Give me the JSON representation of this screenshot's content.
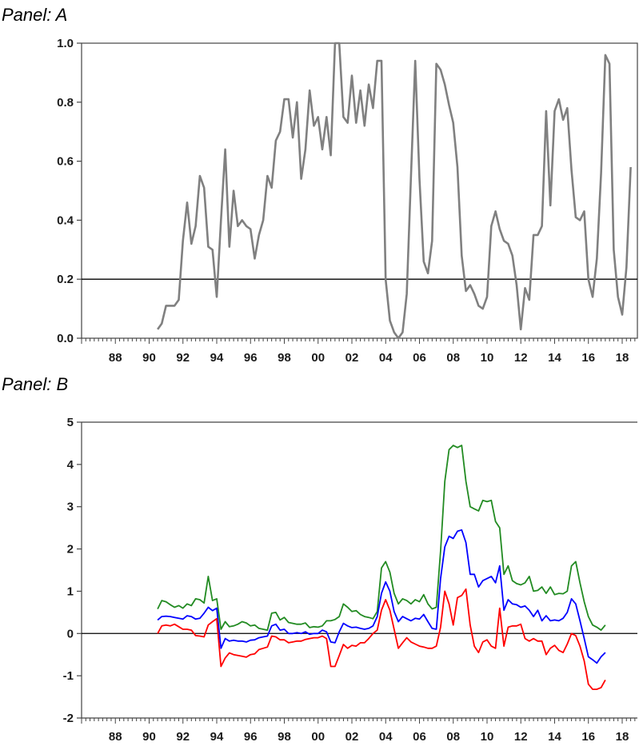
{
  "panels": {
    "a_label": "Panel: A",
    "b_label": "Panel: B"
  },
  "chart_data": [
    {
      "type": "line",
      "panel": "A",
      "x_start": 1986.25,
      "x_step": 0.25,
      "xlim": [
        1986.0,
        2018.9
      ],
      "ylim": [
        0.0,
        1.0
      ],
      "xticks": [
        "88",
        "90",
        "92",
        "94",
        "96",
        "98",
        "00",
        "02",
        "04",
        "06",
        "08",
        "10",
        "12",
        "14",
        "16",
        "18"
      ],
      "yticks": [
        "0.0",
        "0.2",
        "0.4",
        "0.6",
        "0.8",
        "1.0"
      ],
      "reference_line": 0.2,
      "series": [
        {
          "color": "#808080",
          "start": 1990.5,
          "values": [
            0.03,
            0.05,
            0.11,
            0.11,
            0.11,
            0.13,
            0.33,
            0.46,
            0.32,
            0.38,
            0.55,
            0.51,
            0.31,
            0.3,
            0.14,
            0.4,
            0.64,
            0.31,
            0.5,
            0.38,
            0.4,
            0.38,
            0.37,
            0.27,
            0.35,
            0.4,
            0.55,
            0.51,
            0.67,
            0.7,
            0.81,
            0.81,
            0.68,
            0.8,
            0.54,
            0.64,
            0.84,
            0.72,
            0.75,
            0.64,
            0.75,
            0.62,
            1.0,
            1.0,
            0.75,
            0.73,
            0.89,
            0.73,
            0.84,
            0.72,
            0.86,
            0.78,
            0.94,
            0.94,
            0.2,
            0.06,
            0.02,
            0.0,
            0.02,
            0.15,
            0.55,
            0.94,
            0.54,
            0.26,
            0.22,
            0.33,
            0.93,
            0.91,
            0.86,
            0.79,
            0.73,
            0.58,
            0.28,
            0.16,
            0.18,
            0.15,
            0.11,
            0.1,
            0.14,
            0.38,
            0.43,
            0.37,
            0.33,
            0.32,
            0.28,
            0.18,
            0.03,
            0.17,
            0.13,
            0.35,
            0.35,
            0.38,
            0.77,
            0.45,
            0.77,
            0.81,
            0.74,
            0.78,
            0.57,
            0.41,
            0.4,
            0.43,
            0.2,
            0.14,
            0.27,
            0.56,
            0.96,
            0.93,
            0.3,
            0.14,
            0.08,
            0.24,
            0.58
          ]
        }
      ]
    },
    {
      "type": "line",
      "panel": "B",
      "xlim": [
        1986.0,
        2018.9
      ],
      "ylim": [
        -2,
        5
      ],
      "xticks": [
        "88",
        "90",
        "92",
        "94",
        "96",
        "98",
        "00",
        "02",
        "04",
        "06",
        "08",
        "10",
        "12",
        "14",
        "16",
        "18"
      ],
      "yticks": [
        "-2",
        "-1",
        "0",
        "1",
        "2",
        "3",
        "4",
        "5"
      ],
      "reference_line": 0,
      "series": [
        {
          "color": "#228b22",
          "start": 1990.5,
          "values": [
            0.58,
            0.78,
            0.75,
            0.68,
            0.62,
            0.66,
            0.6,
            0.7,
            0.66,
            0.82,
            0.8,
            0.72,
            1.35,
            0.78,
            0.82,
            0.1,
            0.28,
            0.16,
            0.18,
            0.22,
            0.28,
            0.25,
            0.18,
            0.2,
            0.12,
            0.1,
            0.08,
            0.48,
            0.5,
            0.32,
            0.38,
            0.26,
            0.24,
            0.22,
            0.22,
            0.25,
            0.14,
            0.16,
            0.15,
            0.18,
            0.3,
            0.3,
            0.33,
            0.4,
            0.7,
            0.62,
            0.52,
            0.54,
            0.45,
            0.4,
            0.38,
            0.35,
            0.52,
            1.55,
            1.7,
            1.45,
            0.95,
            0.7,
            0.82,
            0.78,
            0.7,
            0.8,
            0.75,
            0.92,
            0.7,
            0.58,
            0.62,
            1.95,
            3.6,
            4.35,
            4.45,
            4.4,
            4.45,
            3.6,
            3.0,
            2.95,
            2.9,
            3.15,
            3.12,
            3.15,
            2.65,
            2.5,
            1.4,
            1.6,
            1.25,
            1.18,
            1.15,
            1.2,
            1.35,
            1.0,
            1.02,
            1.1,
            0.95,
            1.1,
            0.92,
            0.95,
            0.94,
            1.0,
            1.6,
            1.7,
            1.2,
            0.75,
            0.4,
            0.2,
            0.15,
            0.08,
            0.2
          ]
        },
        {
          "color": "#0000ff",
          "start": 1990.5,
          "values": [
            0.32,
            0.4,
            0.41,
            0.4,
            0.38,
            0.36,
            0.34,
            0.42,
            0.4,
            0.34,
            0.36,
            0.48,
            0.62,
            0.54,
            0.6,
            -0.35,
            -0.12,
            -0.18,
            -0.16,
            -0.18,
            -0.18,
            -0.2,
            -0.16,
            -0.15,
            -0.1,
            -0.08,
            -0.06,
            0.18,
            0.22,
            0.08,
            0.1,
            0.0,
            0.0,
            0.02,
            0.0,
            0.04,
            -0.02,
            0.0,
            0.0,
            0.08,
            0.04,
            -0.2,
            -0.22,
            0.04,
            0.24,
            0.18,
            0.14,
            0.15,
            0.12,
            0.1,
            0.12,
            0.18,
            0.4,
            0.95,
            1.22,
            1.0,
            0.52,
            0.28,
            0.4,
            0.35,
            0.3,
            0.36,
            0.34,
            0.45,
            0.28,
            0.12,
            0.1,
            1.3,
            2.05,
            2.3,
            2.25,
            2.42,
            2.45,
            2.15,
            1.4,
            1.4,
            1.1,
            1.25,
            1.3,
            1.35,
            1.2,
            1.6,
            0.55,
            0.8,
            0.7,
            0.68,
            0.62,
            0.65,
            0.55,
            0.4,
            0.55,
            0.3,
            0.42,
            0.3,
            0.32,
            0.3,
            0.36,
            0.5,
            0.82,
            0.7,
            0.3,
            -0.12,
            -0.55,
            -0.62,
            -0.7,
            -0.55,
            -0.45
          ]
        },
        {
          "color": "#ff0000",
          "start": 1990.5,
          "values": [
            0.0,
            0.18,
            0.2,
            0.18,
            0.22,
            0.16,
            0.1,
            0.1,
            0.08,
            -0.05,
            -0.06,
            -0.08,
            0.2,
            0.28,
            0.35,
            -0.78,
            -0.58,
            -0.46,
            -0.5,
            -0.52,
            -0.54,
            -0.56,
            -0.5,
            -0.48,
            -0.38,
            -0.35,
            -0.32,
            -0.06,
            -0.08,
            -0.15,
            -0.15,
            -0.22,
            -0.2,
            -0.18,
            -0.18,
            -0.14,
            -0.12,
            -0.1,
            -0.1,
            -0.06,
            -0.12,
            -0.78,
            -0.78,
            -0.52,
            -0.26,
            -0.35,
            -0.28,
            -0.3,
            -0.22,
            -0.22,
            -0.12,
            0.0,
            0.08,
            0.55,
            0.8,
            0.55,
            0.1,
            -0.35,
            -0.22,
            -0.1,
            -0.2,
            -0.25,
            -0.3,
            -0.32,
            -0.35,
            -0.35,
            -0.3,
            0.15,
            1.0,
            0.7,
            0.2,
            0.85,
            0.9,
            1.05,
            0.2,
            -0.3,
            -0.45,
            -0.2,
            -0.15,
            -0.3,
            -0.35,
            0.6,
            -0.3,
            0.15,
            0.18,
            0.18,
            0.22,
            -0.12,
            -0.18,
            -0.12,
            -0.18,
            -0.18,
            -0.5,
            -0.35,
            -0.28,
            -0.4,
            -0.45,
            -0.25,
            0.0,
            -0.05,
            -0.3,
            -0.65,
            -1.2,
            -1.32,
            -1.32,
            -1.28,
            -1.1
          ]
        }
      ]
    }
  ]
}
